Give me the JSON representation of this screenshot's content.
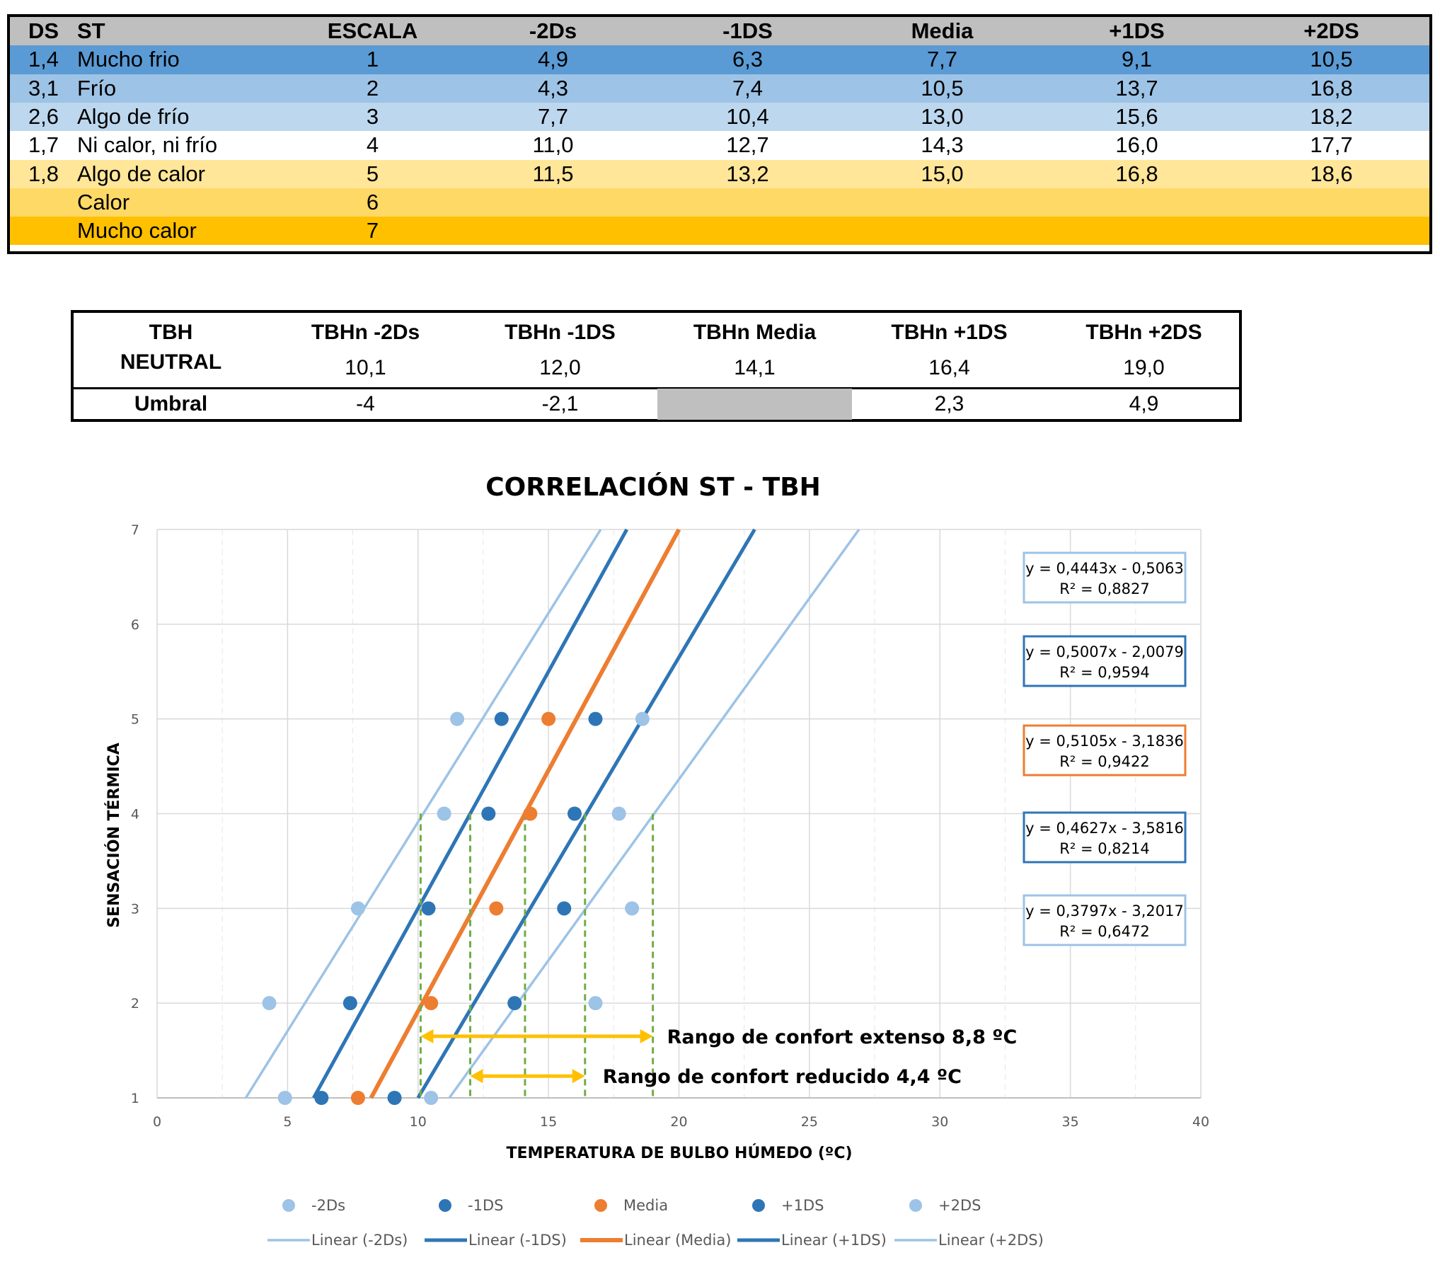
{
  "table_st": {
    "headers": [
      "DS",
      "ST",
      "ESCALA",
      "-2Ds",
      "-1DS",
      "Media",
      "+1DS",
      "+2DS"
    ],
    "rows": [
      {
        "ds": "1,4",
        "st": "Mucho frio",
        "escala": "1",
        "v": [
          "4,9",
          "6,3",
          "7,7",
          "9,1",
          "10,5"
        ],
        "bg": "#5b9bd5"
      },
      {
        "ds": "3,1",
        "st": "Frío",
        "escala": "2",
        "v": [
          "4,3",
          "7,4",
          "10,5",
          "13,7",
          "16,8"
        ],
        "bg": "#9dc3e6"
      },
      {
        "ds": "2,6",
        "st": "Algo de frío",
        "escala": "3",
        "v": [
          "7,7",
          "10,4",
          "13,0",
          "15,6",
          "18,2"
        ],
        "bg": "#bdd7ee"
      },
      {
        "ds": "1,7",
        "st": "Ni calor, ni frío",
        "escala": "4",
        "v": [
          "11,0",
          "12,7",
          "14,3",
          "16,0",
          "17,7"
        ],
        "bg": "#ffffff"
      },
      {
        "ds": "1,8",
        "st": "Algo de calor",
        "escala": "5",
        "v": [
          "11,5",
          "13,2",
          "15,0",
          "16,8",
          "18,6"
        ],
        "bg": "#ffe699"
      },
      {
        "ds": "",
        "st": "Calor",
        "escala": "6",
        "v": [
          "",
          "",
          "",
          "",
          ""
        ],
        "bg": "#ffd966"
      },
      {
        "ds": "",
        "st": "Mucho calor",
        "escala": "7",
        "v": [
          "",
          "",
          "",
          "",
          ""
        ],
        "bg": "#ffc000"
      }
    ],
    "header_bg": "#bfbfbf"
  },
  "table_tbh": {
    "row_label_1": "TBH",
    "row_label_2": "NEUTRAL",
    "headers": [
      "TBHn -2Ds",
      "TBHn -1DS",
      "TBHn Media",
      "TBHn +1DS",
      "TBHn +2DS"
    ],
    "neutral": [
      "10,1",
      "12,0",
      "14,1",
      "16,4",
      "19,0"
    ],
    "umbral_label": "Umbral",
    "umbral": [
      "-4",
      "-2,1",
      "",
      "2,3",
      "4,9"
    ]
  },
  "chart_data": {
    "type": "scatter",
    "title": "CORRELACIÓN ST - TBH",
    "xlabel": "TEMPERATURA DE BULBO HÚMEDO (ºC)",
    "ylabel": "SENSACIÓN TÉRMICA",
    "xlim": [
      0,
      40
    ],
    "ylim": [
      1,
      7
    ],
    "x_ticks": [
      0,
      5,
      10,
      15,
      20,
      25,
      30,
      35,
      40
    ],
    "y_ticks": [
      1,
      2,
      3,
      4,
      5,
      6,
      7
    ],
    "grid": true,
    "series": [
      {
        "name": "-2Ds",
        "color": "#9dc3e6",
        "points": [
          [
            4.9,
            1
          ],
          [
            4.3,
            2
          ],
          [
            7.7,
            3
          ],
          [
            11.0,
            4
          ],
          [
            11.5,
            5
          ]
        ],
        "trend_label": "Linear (-2Ds)",
        "equation": "y = 0,4443x - 0,5063",
        "r2": "R² = 0,8827"
      },
      {
        "name": "-1DS",
        "color": "#2e75b6",
        "points": [
          [
            6.3,
            1
          ],
          [
            7.4,
            2
          ],
          [
            10.4,
            3
          ],
          [
            12.7,
            4
          ],
          [
            13.2,
            5
          ]
        ],
        "trend_label": "Linear (-1DS)",
        "equation": "y = 0,5007x - 2,0079",
        "r2": "R² = 0,9594"
      },
      {
        "name": "Media",
        "color": "#ed7d31",
        "points": [
          [
            7.7,
            1
          ],
          [
            10.5,
            2
          ],
          [
            13.0,
            3
          ],
          [
            14.3,
            4
          ],
          [
            15.0,
            5
          ]
        ],
        "trend_label": "Linear (Media)",
        "equation": "y = 0,5105x - 3,1836",
        "r2": "R² = 0,9422"
      },
      {
        "name": "+1DS",
        "color": "#2e75b6",
        "points": [
          [
            9.1,
            1
          ],
          [
            13.7,
            2
          ],
          [
            15.6,
            3
          ],
          [
            16.0,
            4
          ],
          [
            16.8,
            5
          ]
        ],
        "trend_label": "Linear (+1DS)",
        "equation": "y = 0,4627x - 3,5816",
        "r2": "R² = 0,8214"
      },
      {
        "name": "+2DS",
        "color": "#9dc3e6",
        "points": [
          [
            10.5,
            1
          ],
          [
            16.8,
            2
          ],
          [
            18.2,
            3
          ],
          [
            17.7,
            4
          ],
          [
            18.6,
            5
          ]
        ],
        "trend_label": "Linear (+2DS)",
        "equation": "y = 0,3797x - 3,2017",
        "r2": "R² = 0,6472"
      }
    ],
    "trend_lines": [
      {
        "series": "-2Ds",
        "from": [
          3.4,
          1
        ],
        "to": [
          17.0,
          7
        ]
      },
      {
        "series": "-1DS",
        "from": [
          6.0,
          1
        ],
        "to": [
          18.0,
          7
        ]
      },
      {
        "series": "Media",
        "from": [
          8.2,
          1
        ],
        "to": [
          20.0,
          7
        ]
      },
      {
        "series": "+1DS",
        "from": [
          10.0,
          1
        ],
        "to": [
          22.9,
          7
        ]
      },
      {
        "series": "+2DS",
        "from": [
          11.2,
          1
        ],
        "to": [
          26.9,
          7
        ]
      }
    ],
    "vertical_markers": {
      "color": "#70ad47",
      "x": [
        10.1,
        12.0,
        14.1,
        16.4,
        19.0
      ],
      "y_top": 4
    },
    "ranges": [
      {
        "from": 10.1,
        "to": 19.0,
        "y": 1.65,
        "label": "Rango de confort extenso 8,8 ºC"
      },
      {
        "from": 12.0,
        "to": 16.4,
        "y": 1.23,
        "label": "Rango de confort reducido 4,4 ºC"
      }
    ],
    "range_color": "#ffc000"
  }
}
